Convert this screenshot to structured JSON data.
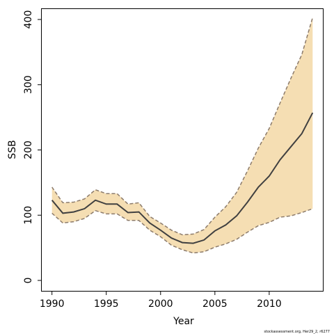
{
  "chart_data": {
    "type": "area",
    "xlabel": "Year",
    "ylabel": "SSB",
    "xlim": [
      1989.06,
      2014.94
    ],
    "ylim": [
      -16,
      416
    ],
    "x_ticks": [
      1990,
      1995,
      2000,
      2005,
      2010
    ],
    "y_ticks": [
      0,
      100,
      200,
      300,
      400
    ],
    "grid": false,
    "x": [
      1990,
      1991,
      1992,
      1993,
      1994,
      1995,
      1996,
      1997,
      1998,
      1999,
      2000,
      2001,
      2002,
      2003,
      2004,
      2005,
      2006,
      2007,
      2008,
      2009,
      2010,
      2011,
      2012,
      2013,
      2014
    ],
    "series": [
      {
        "values": [
          123,
          103,
          105,
          110,
          123,
          117,
          117,
          104,
          105,
          88,
          77,
          65,
          58,
          57,
          62,
          76,
          85,
          99,
          120,
          143,
          160,
          185,
          205,
          225,
          257
        ]
      }
    ],
    "band": {
      "upper": [
        143,
        119,
        120,
        125,
        139,
        133,
        133,
        117,
        119,
        98,
        88,
        77,
        70,
        71,
        78,
        97,
        113,
        135,
        168,
        203,
        233,
        272,
        310,
        346,
        403
      ],
      "lower": [
        103,
        88,
        90,
        95,
        107,
        102,
        102,
        92,
        92,
        77,
        67,
        54,
        47,
        42,
        44,
        51,
        56,
        63,
        74,
        84,
        89,
        97,
        99,
        104,
        110
      ]
    },
    "colors": {
      "band_fill": "#f5deb3",
      "band_edge": "#8c7b6b",
      "line": "#404040"
    },
    "footnote": "stockassessment.org, Her29_2, r6277"
  }
}
